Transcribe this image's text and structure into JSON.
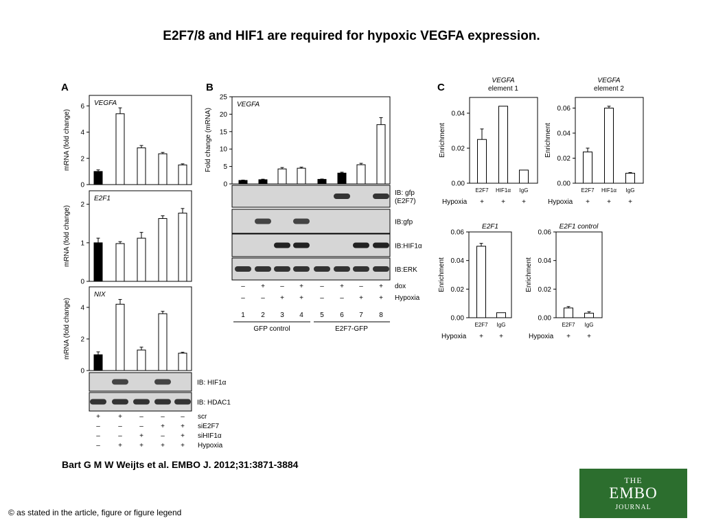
{
  "title": "E2F7/8 and HIF1 are required for hypoxic VEGFA expression.",
  "citation": "Bart G M W Weijts et al. EMBO J. 2012;31:3871-3884",
  "copyright": "© as stated in the article, figure or figure legend",
  "logo": {
    "line1": "THE",
    "line2": "EMBO",
    "line3": "JOURNAL"
  },
  "colors": {
    "filled_bar": "#000000",
    "open_bar": "#ffffff",
    "blot_bg": "#d6d6d6",
    "logo_green": "#2c6e2e"
  },
  "panels": {
    "A": {
      "label": "A",
      "ylabel": "mRNA (fold change)",
      "blots": [
        "IB: HIF1α",
        "IB: HDAC1"
      ],
      "conditions": [
        {
          "name": "scr",
          "values": [
            "+",
            "+",
            "–",
            "–",
            "–"
          ]
        },
        {
          "name": "siE2F7",
          "values": [
            "–",
            "–",
            "–",
            "+",
            "+"
          ]
        },
        {
          "name": "siHIF1α",
          "values": [
            "–",
            "–",
            "+",
            "–",
            "+"
          ]
        },
        {
          "name": "Hypoxia",
          "values": [
            "–",
            "+",
            "+",
            "+",
            "+"
          ]
        }
      ]
    },
    "B": {
      "label": "B",
      "ylabel": "Fold change (mRNA)",
      "blots": [
        "IB: gfp\n(E2F7)",
        "IB:gfp",
        "IB:HIF1α",
        "IB:ERK"
      ],
      "conditions": [
        {
          "name": "dox",
          "values": [
            "–",
            "+",
            "–",
            "+",
            "–",
            "+",
            "–",
            "+"
          ]
        },
        {
          "name": "Hypoxia",
          "values": [
            "–",
            "–",
            "+",
            "+",
            "–",
            "–",
            "+",
            "+"
          ]
        }
      ],
      "lanes": [
        "1",
        "2",
        "3",
        "4",
        "5",
        "6",
        "7",
        "8"
      ],
      "groups": [
        "GFP control",
        "E2F7-GFP"
      ]
    },
    "C": {
      "label": "C",
      "ylabel": "Enrichment",
      "condition": "Hypoxia"
    }
  },
  "chart_data": [
    {
      "id": "A-VEGFA",
      "type": "bar",
      "title": "VEGFA",
      "ylabel": "mRNA (fold change)",
      "ylim": [
        0,
        6.8
      ],
      "yticks": [
        0,
        2,
        4,
        6
      ],
      "values": [
        1.0,
        5.4,
        2.8,
        2.35,
        1.5
      ],
      "errors": [
        0.12,
        0.45,
        0.18,
        0.1,
        0.08
      ],
      "filled": [
        true,
        false,
        false,
        false,
        false
      ]
    },
    {
      "id": "A-E2F1",
      "type": "bar",
      "title": "E2F1",
      "ylabel": "mRNA (fold change)",
      "ylim": [
        0,
        2.35
      ],
      "yticks": [
        0,
        1,
        2
      ],
      "values": [
        1.0,
        0.98,
        1.12,
        1.63,
        1.77
      ],
      "errors": [
        0.12,
        0.05,
        0.15,
        0.07,
        0.12
      ],
      "filled": [
        true,
        false,
        false,
        false,
        false
      ]
    },
    {
      "id": "A-NIX",
      "type": "bar",
      "title": "NIX",
      "ylabel": "mRNA (fold change)",
      "ylim": [
        0,
        5.3
      ],
      "yticks": [
        0,
        2,
        4
      ],
      "values": [
        1.0,
        4.2,
        1.3,
        3.6,
        1.1
      ],
      "errors": [
        0.18,
        0.3,
        0.18,
        0.15,
        0.06
      ],
      "filled": [
        true,
        false,
        false,
        false,
        false
      ]
    },
    {
      "id": "B-VEGFA",
      "type": "bar",
      "title": "VEGFA",
      "ylabel": "Fold change (mRNA)",
      "ylim": [
        0,
        25
      ],
      "yticks": [
        0,
        5,
        10,
        15,
        20,
        25
      ],
      "values": [
        1.0,
        1.2,
        4.3,
        4.5,
        1.3,
        3.1,
        5.5,
        17
      ],
      "errors": [
        0.1,
        0.15,
        0.4,
        0.3,
        0.1,
        0.25,
        0.4,
        2.0
      ],
      "filled": [
        true,
        true,
        false,
        false,
        true,
        true,
        false,
        false
      ]
    },
    {
      "id": "C-VEGFA-1",
      "type": "bar",
      "title": "VEGFA",
      "subtitle": "element 1",
      "ylabel": "Enrichment",
      "ylim": [
        0,
        0.049
      ],
      "yticks": [
        "0.00",
        "0.02",
        "0.04"
      ],
      "categories": [
        "E2F7",
        "HIF1α",
        "IgG"
      ],
      "hypoxia": [
        "+",
        "+",
        "+"
      ],
      "values": [
        0.025,
        0.044,
        0.0075
      ],
      "errors": [
        0.006,
        0.0,
        0.0
      ]
    },
    {
      "id": "C-VEGFA-2",
      "type": "bar",
      "title": "VEGFA",
      "subtitle": "element 2",
      "ylabel": "Enrichment",
      "ylim": [
        0,
        0.0685
      ],
      "yticks": [
        "0.00",
        "0.02",
        "0.04",
        "0.06"
      ],
      "categories": [
        "E2F7",
        "HIF1α",
        "IgG"
      ],
      "hypoxia": [
        "+",
        "+",
        "+"
      ],
      "values": [
        0.025,
        0.06,
        0.008
      ],
      "errors": [
        0.003,
        0.0015,
        0.0005
      ]
    },
    {
      "id": "C-E2F1",
      "type": "bar",
      "title": "E2F1",
      "subtitle": "",
      "ylabel": "Enrichment",
      "ylim": [
        0,
        0.06
      ],
      "yticks": [
        "0.00",
        "0.02",
        "0.04",
        "0.06"
      ],
      "categories": [
        "E2F7",
        "IgG"
      ],
      "hypoxia": [
        "+",
        "+"
      ],
      "values": [
        0.05,
        0.0035
      ],
      "errors": [
        0.002,
        0.0
      ]
    },
    {
      "id": "C-E2F1-control",
      "type": "bar",
      "title": "E2F1 control",
      "subtitle": "",
      "ylabel": "Enrichment",
      "ylim": [
        0,
        0.06
      ],
      "yticks": [
        "0.00",
        "0.02",
        "0.04",
        "0.06"
      ],
      "categories": [
        "E2F7",
        "IgG"
      ],
      "hypoxia": [
        "+",
        "+"
      ],
      "values": [
        0.0068,
        0.0032
      ],
      "errors": [
        0.001,
        0.001
      ]
    }
  ]
}
